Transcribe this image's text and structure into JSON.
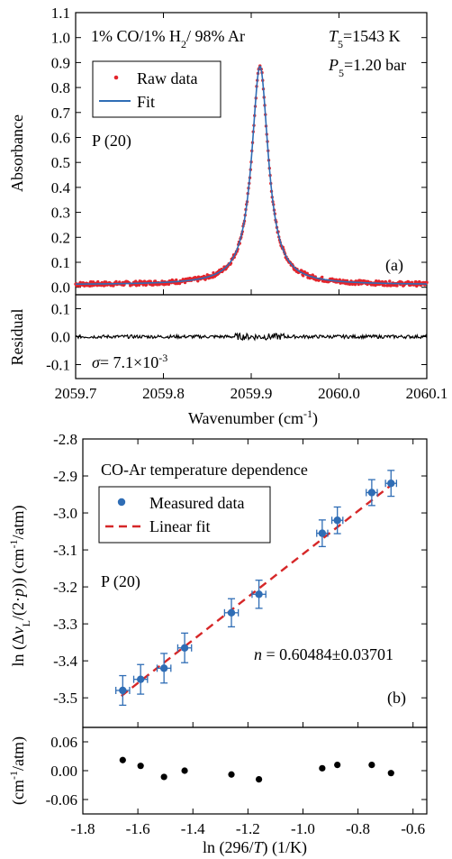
{
  "chart_data": [
    {
      "panel": "(a)",
      "type": "line",
      "xlabel": "Wavenumber (cm⁻¹)",
      "ylabel": "Absorbance",
      "xlim": [
        2059.7,
        2060.1
      ],
      "ylim": [
        -0.03,
        1.1
      ],
      "xticks": [
        "2059.7",
        "2059.8",
        "2059.9",
        "2060.0",
        "2060.1"
      ],
      "yticks": [
        "0.0",
        "0.1",
        "0.2",
        "0.3",
        "0.4",
        "0.5",
        "0.6",
        "0.7",
        "0.8",
        "0.9",
        "1.0",
        "1.1"
      ],
      "annotations": {
        "mixture": "1% CO/1% H₂/ 98% Ar",
        "temperature": "T₅=1543 K",
        "pressure": "P₅=1.20 bar",
        "line": "P (20)",
        "label": "(a)"
      },
      "legend": {
        "placement": "top-left",
        "raw": "Raw data",
        "fit": "Fit"
      },
      "colors": {
        "raw": "#e3252c",
        "fit": "#2f6db5"
      },
      "peak": {
        "center": 2059.91,
        "height": 0.875,
        "hwhm": 0.0115,
        "baseline": 0.01
      },
      "series": [
        {
          "name": "Raw data",
          "x": [
            2059.7,
            2059.75,
            2059.8,
            2059.85,
            2059.88,
            2059.89,
            2059.9,
            2059.905,
            2059.91,
            2059.915,
            2059.92,
            2059.93,
            2059.94,
            2059.97,
            2060.0,
            2060.05,
            2060.1
          ],
          "y": [
            0.01,
            0.02,
            0.03,
            0.07,
            0.18,
            0.33,
            0.65,
            0.8,
            0.88,
            0.8,
            0.65,
            0.33,
            0.18,
            0.06,
            0.04,
            0.02,
            0.01
          ]
        }
      ]
    },
    {
      "panel": "(a) residual",
      "type": "line",
      "ylabel": "Residual",
      "ylim": [
        -0.15,
        0.15
      ],
      "yticks": [
        "0.1",
        "0.0",
        "-0.1"
      ],
      "sigma": "σ= 7.1×10⁻³"
    },
    {
      "panel": "(b)",
      "type": "scatter",
      "title": "CO-Ar temperature dependence",
      "xlabel": "ln (296/T) (1/K)",
      "ylabel": "ln (Δν_L/(2·p)) (cm⁻¹/atm)",
      "xlim": [
        -1.8,
        -0.55
      ],
      "ylim": [
        -3.58,
        -2.8
      ],
      "xticks": [
        "-1.8",
        "-1.6",
        "-1.4",
        "-1.2",
        "-1.0",
        "-0.8",
        "-0.6"
      ],
      "yticks": [
        "-2.8",
        "-2.9",
        "-3.0",
        "-3.1",
        "-3.2",
        "-3.3",
        "-3.4",
        "-3.5"
      ],
      "legend": {
        "placement": "top-left",
        "measured": "Measured data",
        "fit": "Linear fit"
      },
      "colors": {
        "measured": "#2f6db5",
        "fit": "#d62728"
      },
      "annotations": {
        "line": "P (20)",
        "slope": "n = 0.60484±0.03701",
        "label": "(b)"
      },
      "fit_line": {
        "slope": 0.60484,
        "x": [
          -1.66,
          -0.68
        ],
        "y": [
          -3.495,
          -2.925
        ]
      },
      "series": [
        {
          "name": "Measured data",
          "x": [
            -1.655,
            -1.59,
            -1.505,
            -1.43,
            -1.26,
            -1.16,
            -0.93,
            -0.875,
            -0.75,
            -0.68
          ],
          "y": [
            -3.48,
            -3.45,
            -3.42,
            -3.365,
            -3.27,
            -3.22,
            -3.055,
            -3.02,
            -2.945,
            -2.92
          ],
          "xerr": [
            0.025,
            0.025,
            0.025,
            0.025,
            0.025,
            0.025,
            0.02,
            0.02,
            0.02,
            0.02
          ],
          "yerr": [
            0.04,
            0.04,
            0.04,
            0.04,
            0.038,
            0.038,
            0.036,
            0.036,
            0.035,
            0.035
          ]
        }
      ]
    },
    {
      "panel": "(b) residual",
      "type": "scatter",
      "ylabel": "(cm⁻¹/atm)",
      "ylim": [
        -0.09,
        0.09
      ],
      "yticks": [
        "0.06",
        "0.00",
        "-0.06"
      ],
      "x": [
        -1.655,
        -1.59,
        -1.505,
        -1.43,
        -1.26,
        -1.16,
        -0.93,
        -0.875,
        -0.75,
        -0.68
      ],
      "y": [
        0.022,
        0.01,
        -0.013,
        0.0,
        -0.008,
        -0.018,
        0.005,
        0.012,
        0.012,
        -0.005
      ]
    }
  ]
}
